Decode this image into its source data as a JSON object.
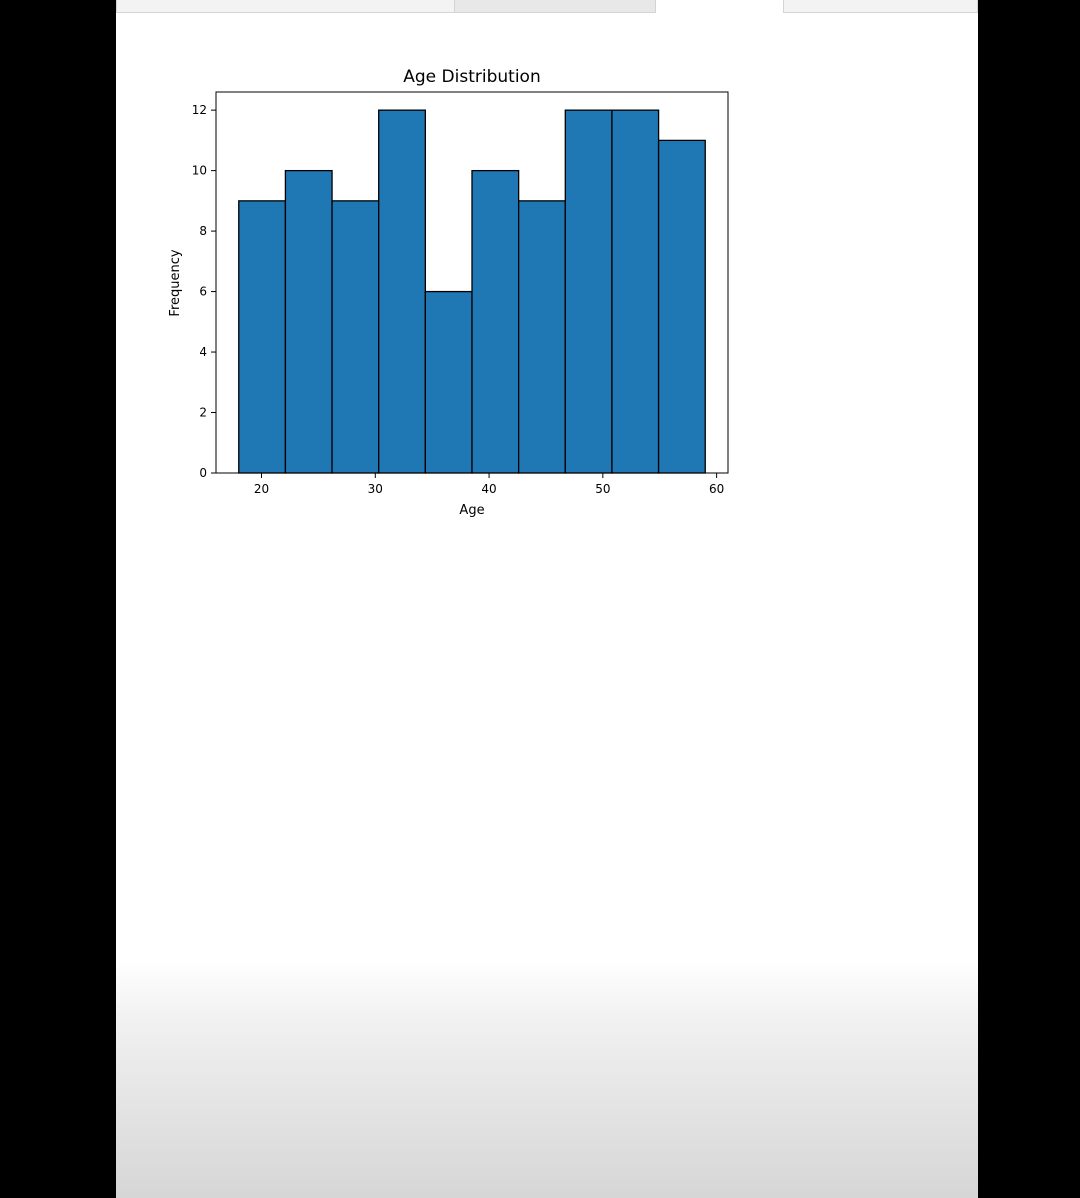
{
  "chart_data": {
    "type": "bar",
    "title": "Age Distribution",
    "xlabel": "Age",
    "ylabel": "Frequency",
    "bin_edges": [
      18,
      22.1,
      26.2,
      30.3,
      34.4,
      38.5,
      42.6,
      46.7,
      50.8,
      54.9,
      59
    ],
    "values": [
      9,
      10,
      9,
      12,
      6,
      10,
      9,
      12,
      12,
      11
    ],
    "xlim": [
      16,
      61
    ],
    "ylim": [
      0,
      12.6
    ],
    "xticks": [
      20,
      30,
      40,
      50,
      60
    ],
    "yticks": [
      0,
      2,
      4,
      6,
      8,
      10,
      12
    ],
    "bar_color": "#1f77b4",
    "edge_color": "#000000",
    "grid": false
  }
}
